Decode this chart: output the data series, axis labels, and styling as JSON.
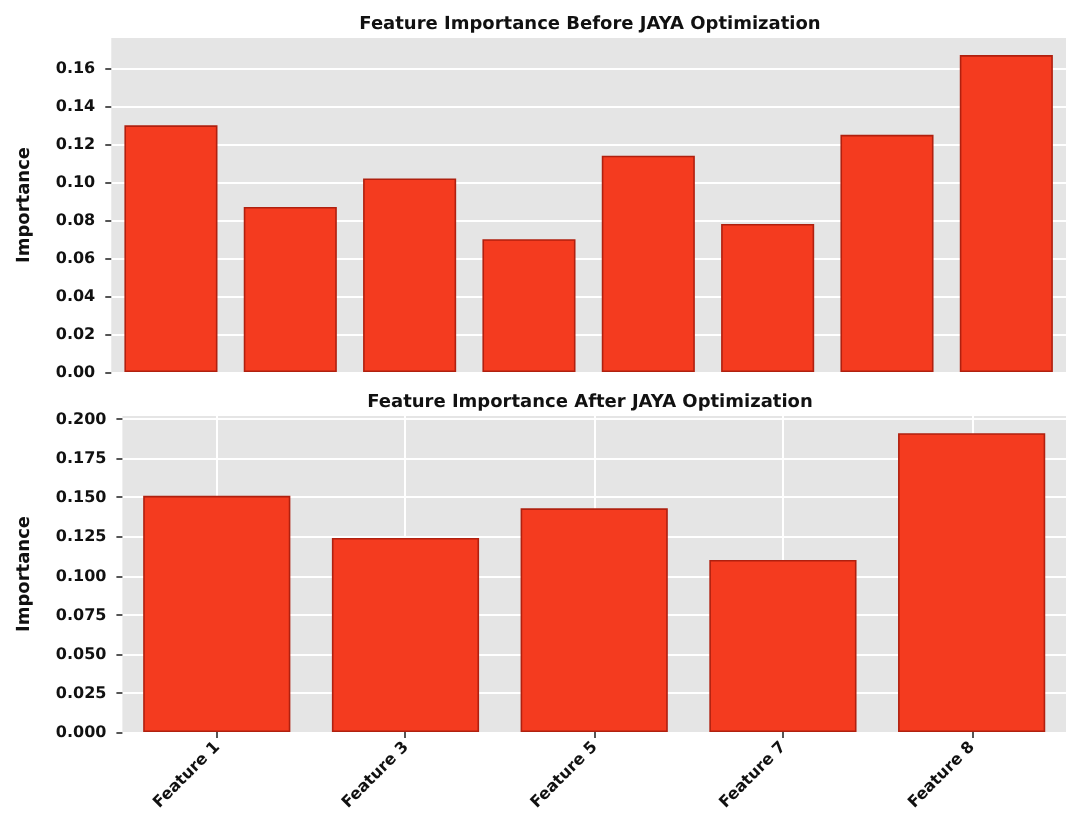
{
  "chart_data": [
    {
      "type": "bar",
      "title": "Feature Importance Before JAYA Optimization",
      "ylabel": "Importance",
      "categories": [
        null,
        null,
        null,
        null,
        null,
        null,
        null,
        null
      ],
      "values": [
        0.13,
        0.087,
        0.102,
        0.07,
        0.114,
        0.078,
        0.125,
        0.167
      ],
      "color": "#f43b1f",
      "ylim": [
        0,
        0.176
      ],
      "yticks": [
        {
          "value": 0,
          "label": "0.00"
        },
        {
          "value": 0.02,
          "label": "0.02"
        },
        {
          "value": 0.04,
          "label": "0.04"
        },
        {
          "value": 0.06,
          "label": "0.06"
        },
        {
          "value": 0.08,
          "label": "0.08"
        },
        {
          "value": 0.1,
          "label": "0.10"
        },
        {
          "value": 0.12,
          "label": "0.12"
        },
        {
          "value": 0.14,
          "label": "0.14"
        },
        {
          "value": 0.16,
          "label": "0.16"
        }
      ],
      "grid": "y",
      "tick_labels": "y"
    },
    {
      "type": "bar",
      "title": "Feature Importance After JAYA Optimization",
      "ylabel": "Importance",
      "categories": [
        "Feature 1",
        "Feature 3",
        "Feature 5",
        "Feature 7",
        "Feature 8"
      ],
      "values": [
        0.151,
        0.124,
        0.143,
        0.11,
        0.191
      ],
      "color": "#f43b1f",
      "ylim": [
        0,
        0.202
      ],
      "yticks": [
        {
          "value": 0,
          "label": "0.000"
        },
        {
          "value": 0.025,
          "label": "0.025"
        },
        {
          "value": 0.05,
          "label": "0.050"
        },
        {
          "value": 0.075,
          "label": "0.075"
        },
        {
          "value": 0.1,
          "label": "0.100"
        },
        {
          "value": 0.125,
          "label": "0.125"
        },
        {
          "value": 0.15,
          "label": "0.150"
        },
        {
          "value": 0.175,
          "label": "0.175"
        },
        {
          "value": 0.2,
          "label": "0.200"
        }
      ],
      "grid": true
    }
  ]
}
